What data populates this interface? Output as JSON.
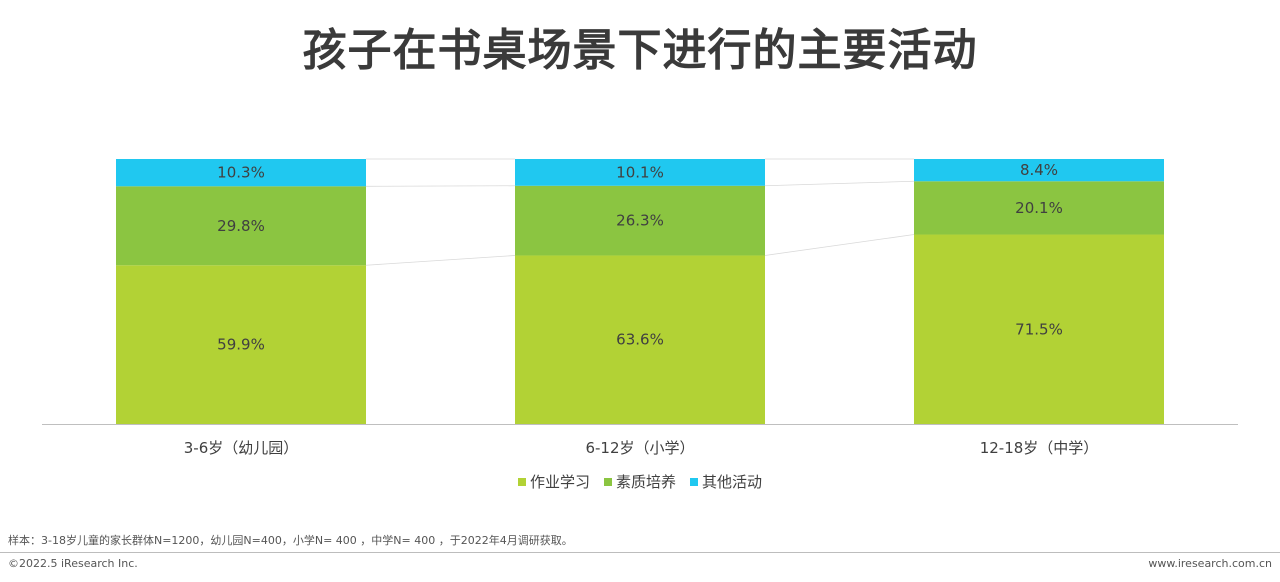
{
  "title": "孩子在书桌场景下进行的主要活动",
  "chart_data": {
    "type": "bar",
    "stacked": true,
    "percent_stacked": true,
    "categories": [
      "3-6岁（幼儿园）",
      "6-12岁（小学）",
      "12-18岁（中学）"
    ],
    "series": [
      {
        "name": "作业学习",
        "values": [
          59.9,
          63.6,
          71.5
        ],
        "labels": [
          "59.9%",
          "63.6%",
          "71.5%"
        ],
        "color": "#b2d235"
      },
      {
        "name": "素质培养",
        "values": [
          29.8,
          26.3,
          20.1
        ],
        "labels": [
          "29.8%",
          "26.3%",
          "20.1%"
        ],
        "color": "#8bc541"
      },
      {
        "name": "其他活动",
        "values": [
          10.3,
          10.1,
          8.4
        ],
        "labels": [
          "10.3%",
          "10.1%",
          "8.4%"
        ],
        "color": "#20c8f0"
      }
    ],
    "ylim": [
      0,
      100
    ],
    "grid": false,
    "legend_position": "bottom"
  },
  "note": "样本：3-18岁儿童的家长群体N=1200，幼儿园N=400，小学N= 400 ，中学N= 400 ，于2022年4月调研获取。",
  "copyright": "©2022.5 iResearch Inc.",
  "website": "www.iresearch.com.cn"
}
